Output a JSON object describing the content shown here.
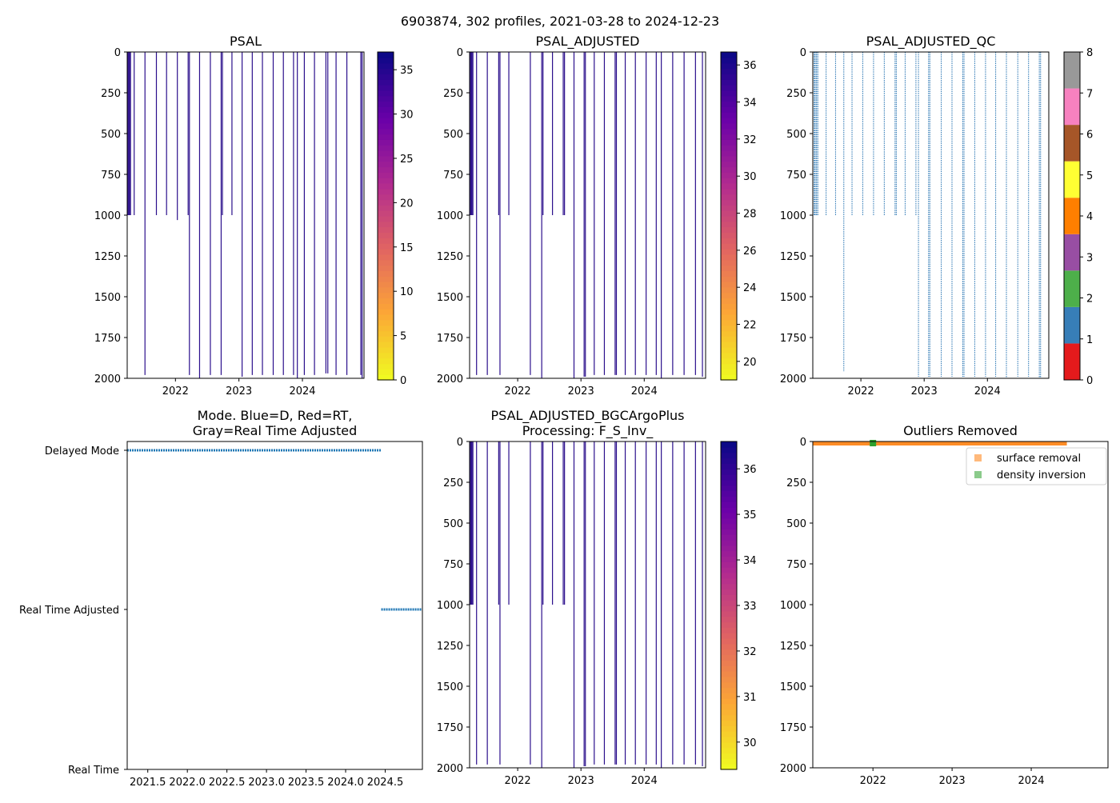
{
  "suptitle": "6903874, 302 profiles, 2021-03-28 to 2024-12-23",
  "colors": {
    "qc": [
      "#e41a1c",
      "#377eb8",
      "#4daf4a",
      "#984ea3",
      "#ff7f00",
      "#ffff33",
      "#a65628",
      "#f781bf",
      "#999999"
    ],
    "profile_line": "#2b0f8c",
    "mode_points": "#1f77b4",
    "surface_removal": "#ff7f0e",
    "density_inversion": "#2ca02c"
  },
  "chart_data": [
    {
      "id": "psal",
      "type": "heatmap",
      "title": "PSAL",
      "xlim": [
        2021.24,
        2024.97
      ],
      "ylim": [
        2000,
        0
      ],
      "xticks": [
        2022,
        2023,
        2024
      ],
      "xtick_labels": [
        "2022",
        "2023",
        "2024"
      ],
      "yticks": [
        0,
        250,
        500,
        750,
        1000,
        1250,
        1500,
        1750,
        2000
      ],
      "ytick_labels": [
        "0",
        "250",
        "500",
        "750",
        "1000",
        "1250",
        "1500",
        "1750",
        "2000"
      ],
      "colorbar": {
        "range": [
          0,
          37
        ],
        "ticks": [
          0,
          5,
          10,
          15,
          20,
          25,
          30,
          35
        ],
        "tick_labels": [
          "0",
          "5",
          "10",
          "15",
          "20",
          "25",
          "30",
          "35"
        ],
        "cmap": "plasma_r"
      },
      "profiles": [
        {
          "x": 2021.25,
          "depth": 1000
        },
        {
          "x": 2021.27,
          "depth": 1000
        },
        {
          "x": 2021.29,
          "depth": 1000
        },
        {
          "x": 2021.35,
          "depth": 1000
        },
        {
          "x": 2021.52,
          "depth": 1980
        },
        {
          "x": 2021.7,
          "depth": 1000
        },
        {
          "x": 2021.86,
          "depth": 1000
        },
        {
          "x": 2022.03,
          "depth": 1030
        },
        {
          "x": 2022.2,
          "depth": 1000
        },
        {
          "x": 2022.22,
          "depth": 1980
        },
        {
          "x": 2022.38,
          "depth": 2000
        },
        {
          "x": 2022.55,
          "depth": 1980
        },
        {
          "x": 2022.72,
          "depth": 1980
        },
        {
          "x": 2022.74,
          "depth": 1000
        },
        {
          "x": 2022.89,
          "depth": 1000
        },
        {
          "x": 2023.05,
          "depth": 1990
        },
        {
          "x": 2023.21,
          "depth": 1980
        },
        {
          "x": 2023.37,
          "depth": 1980
        },
        {
          "x": 2023.54,
          "depth": 1980
        },
        {
          "x": 2023.7,
          "depth": 1980
        },
        {
          "x": 2023.86,
          "depth": 1980
        },
        {
          "x": 2023.92,
          "depth": 2000
        },
        {
          "x": 2024.03,
          "depth": 1980
        },
        {
          "x": 2024.19,
          "depth": 1980
        },
        {
          "x": 2024.37,
          "depth": 1970
        },
        {
          "x": 2024.4,
          "depth": 1970
        },
        {
          "x": 2024.53,
          "depth": 1980
        },
        {
          "x": 2024.7,
          "depth": 1980
        },
        {
          "x": 2024.92,
          "depth": 1980
        },
        {
          "x": 2024.94,
          "depth": 2000
        }
      ]
    },
    {
      "id": "psal_adjusted",
      "type": "heatmap",
      "title": "PSAL_ADJUSTED",
      "xlim": [
        2021.24,
        2024.97
      ],
      "ylim": [
        2000,
        0
      ],
      "xticks": [
        2022,
        2023,
        2024
      ],
      "xtick_labels": [
        "2022",
        "2023",
        "2024"
      ],
      "yticks": [
        0,
        250,
        500,
        750,
        1000,
        1250,
        1500,
        1750,
        2000
      ],
      "ytick_labels": [
        "0",
        "250",
        "500",
        "750",
        "1000",
        "1250",
        "1500",
        "1750",
        "2000"
      ],
      "colorbar": {
        "range": [
          19,
          36.7
        ],
        "ticks": [
          20,
          22,
          24,
          26,
          28,
          30,
          32,
          34,
          36
        ],
        "tick_labels": [
          "20",
          "22",
          "24",
          "26",
          "28",
          "30",
          "32",
          "34",
          "36"
        ],
        "cmap": "plasma_r"
      },
      "profiles": [
        {
          "x": 2021.25,
          "depth": 1000
        },
        {
          "x": 2021.27,
          "depth": 1000
        },
        {
          "x": 2021.29,
          "depth": 1000
        },
        {
          "x": 2021.35,
          "depth": 1980
        },
        {
          "x": 2021.52,
          "depth": 1980
        },
        {
          "x": 2021.7,
          "depth": 1000
        },
        {
          "x": 2021.72,
          "depth": 1980
        },
        {
          "x": 2021.86,
          "depth": 1000
        },
        {
          "x": 2022.2,
          "depth": 1980
        },
        {
          "x": 2022.38,
          "depth": 2000
        },
        {
          "x": 2022.4,
          "depth": 1000
        },
        {
          "x": 2022.55,
          "depth": 1000
        },
        {
          "x": 2022.72,
          "depth": 1000
        },
        {
          "x": 2022.74,
          "depth": 1000
        },
        {
          "x": 2022.89,
          "depth": 2000
        },
        {
          "x": 2023.05,
          "depth": 1990
        },
        {
          "x": 2023.07,
          "depth": 1990
        },
        {
          "x": 2023.21,
          "depth": 1980
        },
        {
          "x": 2023.37,
          "depth": 1980
        },
        {
          "x": 2023.54,
          "depth": 1980
        },
        {
          "x": 2023.56,
          "depth": 1980
        },
        {
          "x": 2023.7,
          "depth": 1980
        },
        {
          "x": 2023.86,
          "depth": 1980
        },
        {
          "x": 2024.03,
          "depth": 1980
        },
        {
          "x": 2024.19,
          "depth": 1980
        },
        {
          "x": 2024.27,
          "depth": 2000
        },
        {
          "x": 2024.45,
          "depth": 1980
        },
        {
          "x": 2024.63,
          "depth": 1980
        },
        {
          "x": 2024.81,
          "depth": 1980
        },
        {
          "x": 2024.92,
          "depth": 1990
        }
      ]
    },
    {
      "id": "psal_adjusted_qc",
      "type": "heatmap",
      "title": "PSAL_ADJUSTED_QC",
      "xlim": [
        2021.24,
        2024.97
      ],
      "ylim": [
        2000,
        0
      ],
      "xticks": [
        2022,
        2023,
        2024
      ],
      "xtick_labels": [
        "2022",
        "2023",
        "2024"
      ],
      "yticks": [
        0,
        250,
        500,
        750,
        1000,
        1250,
        1500,
        1750,
        2000
      ],
      "ytick_labels": [
        "0",
        "250",
        "500",
        "750",
        "1000",
        "1250",
        "1500",
        "1750",
        "2000"
      ],
      "colorbar": {
        "range": [
          0,
          8
        ],
        "ticks": [
          0,
          1,
          2,
          3,
          4,
          5,
          6,
          7,
          8
        ],
        "tick_labels": [
          "0",
          "1",
          "2",
          "3",
          "4",
          "5",
          "6",
          "7",
          "8"
        ],
        "cmap": "qc_categorical"
      },
      "profiles": [
        {
          "x": 2021.26,
          "depth": 1000
        },
        {
          "x": 2021.27,
          "depth": 1000
        },
        {
          "x": 2021.29,
          "depth": 1000
        },
        {
          "x": 2021.3,
          "depth": 1000
        },
        {
          "x": 2021.32,
          "depth": 1000
        },
        {
          "x": 2021.45,
          "depth": 1000
        },
        {
          "x": 2021.6,
          "depth": 1000
        },
        {
          "x": 2021.73,
          "depth": 1960
        },
        {
          "x": 2021.86,
          "depth": 1000
        },
        {
          "x": 2022.03,
          "depth": 1000
        },
        {
          "x": 2022.2,
          "depth": 1000
        },
        {
          "x": 2022.37,
          "depth": 1000
        },
        {
          "x": 2022.54,
          "depth": 1000
        },
        {
          "x": 2022.56,
          "depth": 1000
        },
        {
          "x": 2022.7,
          "depth": 1000
        },
        {
          "x": 2022.87,
          "depth": 1000
        },
        {
          "x": 2022.91,
          "depth": 1990
        },
        {
          "x": 2023.07,
          "depth": 1990
        },
        {
          "x": 2023.09,
          "depth": 1990
        },
        {
          "x": 2023.27,
          "depth": 1990
        },
        {
          "x": 2023.44,
          "depth": 1990
        },
        {
          "x": 2023.61,
          "depth": 1990
        },
        {
          "x": 2023.63,
          "depth": 1990
        },
        {
          "x": 2023.8,
          "depth": 1990
        },
        {
          "x": 2023.97,
          "depth": 1990
        },
        {
          "x": 2024.13,
          "depth": 1990
        },
        {
          "x": 2024.3,
          "depth": 2000
        },
        {
          "x": 2024.48,
          "depth": 1990
        },
        {
          "x": 2024.65,
          "depth": 1990
        },
        {
          "x": 2024.82,
          "depth": 2000
        },
        {
          "x": 2024.84,
          "depth": 2000
        }
      ]
    },
    {
      "id": "mode",
      "type": "scatter",
      "title_lines": [
        "Mode. Blue=D, Red=RT,",
        "Gray=Real Time Adjusted"
      ],
      "xlim": [
        2021.24,
        2024.97
      ],
      "xticks": [
        2021.5,
        2022.0,
        2022.5,
        2023.0,
        2023.5,
        2024.0,
        2024.5
      ],
      "xtick_labels": [
        "2021.5",
        "2022.0",
        "2022.5",
        "2023.0",
        "2023.5",
        "2024.0",
        "2024.5"
      ],
      "y_categories": [
        "Real Time",
        "Real Time Adjusted",
        "Delayed Mode"
      ],
      "series": [
        {
          "name": "Delayed Mode",
          "x_range": [
            2021.24,
            2024.45
          ],
          "y_index": 2
        },
        {
          "name": "Real Time Adjusted",
          "x_range": [
            2024.45,
            2024.97
          ],
          "y_index": 1
        }
      ]
    },
    {
      "id": "psal_bgc",
      "type": "heatmap",
      "title_lines": [
        "PSAL_ADJUSTED_BGCArgoPlus",
        "Processing: F_S_Inv_"
      ],
      "xlim": [
        2021.24,
        2024.97
      ],
      "ylim": [
        2000,
        0
      ],
      "xticks": [
        2022,
        2023,
        2024
      ],
      "xtick_labels": [
        "2022",
        "2023",
        "2024"
      ],
      "yticks": [
        0,
        250,
        500,
        750,
        1000,
        1250,
        1500,
        1750,
        2000
      ],
      "ytick_labels": [
        "0",
        "250",
        "500",
        "750",
        "1000",
        "1250",
        "1500",
        "1750",
        "2000"
      ],
      "colorbar": {
        "range": [
          29.4,
          36.6
        ],
        "ticks": [
          30,
          31,
          32,
          33,
          34,
          35,
          36
        ],
        "tick_labels": [
          "30",
          "31",
          "32",
          "33",
          "34",
          "35",
          "36"
        ],
        "cmap": "plasma_r"
      },
      "profiles": [
        {
          "x": 2021.25,
          "depth": 1000
        },
        {
          "x": 2021.27,
          "depth": 1000
        },
        {
          "x": 2021.29,
          "depth": 1000
        },
        {
          "x": 2021.35,
          "depth": 1980
        },
        {
          "x": 2021.52,
          "depth": 1980
        },
        {
          "x": 2021.7,
          "depth": 1000
        },
        {
          "x": 2021.72,
          "depth": 1980
        },
        {
          "x": 2021.86,
          "depth": 1000
        },
        {
          "x": 2022.2,
          "depth": 1980
        },
        {
          "x": 2022.38,
          "depth": 2000
        },
        {
          "x": 2022.4,
          "depth": 1000
        },
        {
          "x": 2022.55,
          "depth": 1000
        },
        {
          "x": 2022.72,
          "depth": 1000
        },
        {
          "x": 2022.74,
          "depth": 1000
        },
        {
          "x": 2022.89,
          "depth": 2000
        },
        {
          "x": 2023.05,
          "depth": 1990
        },
        {
          "x": 2023.07,
          "depth": 1990
        },
        {
          "x": 2023.21,
          "depth": 1980
        },
        {
          "x": 2023.37,
          "depth": 1980
        },
        {
          "x": 2023.54,
          "depth": 1980
        },
        {
          "x": 2023.56,
          "depth": 1980
        },
        {
          "x": 2023.7,
          "depth": 1980
        },
        {
          "x": 2023.86,
          "depth": 1980
        },
        {
          "x": 2024.03,
          "depth": 1980
        },
        {
          "x": 2024.19,
          "depth": 1980
        },
        {
          "x": 2024.27,
          "depth": 2000
        },
        {
          "x": 2024.45,
          "depth": 1980
        },
        {
          "x": 2024.63,
          "depth": 1980
        },
        {
          "x": 2024.81,
          "depth": 1980
        },
        {
          "x": 2024.92,
          "depth": 1990
        }
      ]
    },
    {
      "id": "outliers",
      "type": "scatter",
      "title": "Outliers Removed",
      "xlim": [
        2021.24,
        2024.97
      ],
      "ylim": [
        2000,
        0
      ],
      "xticks": [
        2022,
        2023,
        2024
      ],
      "xtick_labels": [
        "2022",
        "2023",
        "2024"
      ],
      "yticks": [
        0,
        250,
        500,
        750,
        1000,
        1250,
        1500,
        1750,
        2000
      ],
      "ytick_labels": [
        "0",
        "250",
        "500",
        "750",
        "1000",
        "1250",
        "1500",
        "1750",
        "2000"
      ],
      "legend": {
        "position": "top-right",
        "entries": [
          "surface removal",
          "density inversion"
        ]
      },
      "series": [
        {
          "name": "surface removal",
          "x_range": [
            2021.24,
            2024.45
          ],
          "depth_range": [
            0,
            10
          ]
        },
        {
          "name": "density inversion",
          "x": [
            2022.0
          ],
          "depth": [
            5
          ]
        }
      ]
    }
  ]
}
